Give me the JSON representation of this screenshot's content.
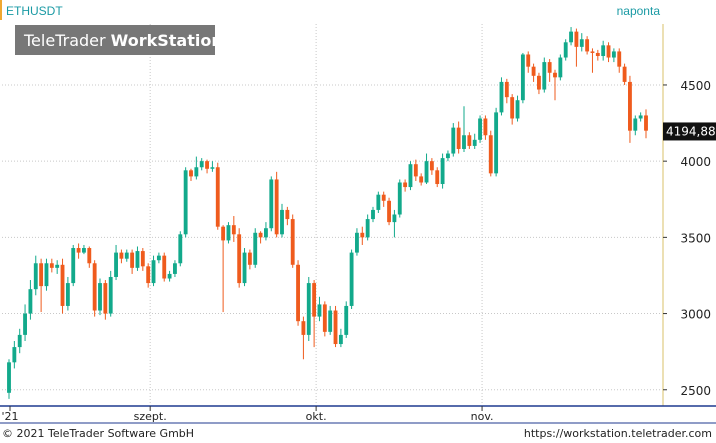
{
  "header": {
    "symbol": "ETHUSDT",
    "interval": "naponta",
    "watermark_light": "TeleTrader ",
    "watermark_bold": "WorkStation"
  },
  "footer": {
    "copyright": "© 2021  TeleTrader Software GmbH",
    "url": "https://workstation.teletrader.com"
  },
  "colors": {
    "up": "#12a98b",
    "down": "#ef5b1d",
    "symbol_text": "#1a9aa4",
    "grid": "#c8c8c8",
    "axis_border": "#1f3a8f",
    "last_label_bg": "#111111"
  },
  "chart_data": {
    "type": "candlestick",
    "symbol": "ETHUSDT",
    "interval": "naponta",
    "ylim": [
      2400,
      4900
    ],
    "y_ticks": [
      "2500",
      "3000",
      "3500",
      "4000",
      "4500"
    ],
    "x_ticks": [
      "'21",
      "szept.",
      "okt.",
      "nov."
    ],
    "last_value_label": "4194,88",
    "last_value": 4194.88,
    "candles": [
      [
        2480,
        2680,
        2440,
        2700
      ],
      [
        2680,
        2780,
        2640,
        2820
      ],
      [
        2780,
        2860,
        2740,
        2900
      ],
      [
        2860,
        3000,
        2820,
        3060
      ],
      [
        3000,
        3160,
        2960,
        3220
      ],
      [
        3160,
        3330,
        3120,
        3380
      ],
      [
        3330,
        3180,
        3010,
        3360
      ],
      [
        3180,
        3330,
        3150,
        3360
      ],
      [
        3330,
        3300,
        3270,
        3360
      ],
      [
        3300,
        3320,
        3260,
        3350
      ],
      [
        3320,
        3050,
        3000,
        3360
      ],
      [
        3050,
        3200,
        3020,
        3240
      ],
      [
        3200,
        3430,
        3180,
        3450
      ],
      [
        3430,
        3400,
        3360,
        3460
      ],
      [
        3400,
        3430,
        3390,
        3450
      ],
      [
        3430,
        3330,
        3300,
        3440
      ],
      [
        3330,
        3020,
        2980,
        3350
      ],
      [
        3020,
        3200,
        2990,
        3230
      ],
      [
        3200,
        3000,
        2960,
        3220
      ],
      [
        3000,
        3240,
        2980,
        3280
      ],
      [
        3240,
        3400,
        3220,
        3450
      ],
      [
        3400,
        3360,
        3330,
        3420
      ],
      [
        3360,
        3400,
        3340,
        3420
      ],
      [
        3400,
        3300,
        3260,
        3420
      ],
      [
        3300,
        3410,
        3280,
        3440
      ],
      [
        3410,
        3310,
        3280,
        3430
      ],
      [
        3310,
        3200,
        3170,
        3330
      ],
      [
        3200,
        3350,
        3180,
        3380
      ],
      [
        3350,
        3380,
        3330,
        3400
      ],
      [
        3380,
        3230,
        3210,
        3400
      ],
      [
        3230,
        3260,
        3210,
        3280
      ],
      [
        3260,
        3330,
        3240,
        3350
      ],
      [
        3330,
        3520,
        3310,
        3540
      ],
      [
        3520,
        3940,
        3500,
        3960
      ],
      [
        3940,
        3900,
        3870,
        3950
      ],
      [
        3900,
        3960,
        3880,
        4030
      ],
      [
        3960,
        4000,
        3940,
        4020
      ],
      [
        4000,
        3950,
        3920,
        4010
      ],
      [
        3950,
        3960,
        3930,
        4000
      ],
      [
        3960,
        3570,
        3550,
        3990
      ],
      [
        3570,
        3480,
        3010,
        3580
      ],
      [
        3480,
        3580,
        3460,
        3600
      ],
      [
        3580,
        3520,
        3470,
        3640
      ],
      [
        3520,
        3200,
        3170,
        3560
      ],
      [
        3200,
        3400,
        3180,
        3430
      ],
      [
        3400,
        3320,
        3290,
        3420
      ],
      [
        3320,
        3530,
        3300,
        3560
      ],
      [
        3530,
        3500,
        3460,
        3540
      ],
      [
        3500,
        3560,
        3480,
        3600
      ],
      [
        3560,
        3880,
        3540,
        3900
      ],
      [
        3880,
        3520,
        3500,
        3930
      ],
      [
        3520,
        3680,
        3500,
        3720
      ],
      [
        3680,
        3620,
        3580,
        3700
      ],
      [
        3620,
        3320,
        3300,
        3650
      ],
      [
        3320,
        2950,
        2920,
        3350
      ],
      [
        2950,
        2860,
        2700,
        2980
      ],
      [
        2860,
        3200,
        2820,
        3240
      ],
      [
        3200,
        2980,
        2780,
        3220
      ],
      [
        2980,
        3060,
        2950,
        3110
      ],
      [
        3060,
        2880,
        2850,
        3080
      ],
      [
        2880,
        3020,
        2860,
        3050
      ],
      [
        3020,
        2800,
        2780,
        3050
      ],
      [
        2800,
        2860,
        2780,
        2900
      ],
      [
        2860,
        3050,
        2840,
        3080
      ],
      [
        3050,
        3400,
        3030,
        3420
      ],
      [
        3400,
        3530,
        3380,
        3560
      ],
      [
        3530,
        3500,
        3450,
        3570
      ],
      [
        3500,
        3620,
        3480,
        3650
      ],
      [
        3620,
        3680,
        3600,
        3700
      ],
      [
        3680,
        3780,
        3660,
        3800
      ],
      [
        3780,
        3740,
        3700,
        3800
      ],
      [
        3740,
        3600,
        3580,
        3760
      ],
      [
        3600,
        3650,
        3500,
        3680
      ],
      [
        3650,
        3860,
        3630,
        3880
      ],
      [
        3860,
        3830,
        3800,
        3880
      ],
      [
        3830,
        3980,
        3810,
        4000
      ],
      [
        3980,
        3900,
        3870,
        4010
      ],
      [
        3900,
        3860,
        3840,
        3920
      ],
      [
        3860,
        4000,
        3850,
        4050
      ],
      [
        4000,
        3940,
        3910,
        4020
      ],
      [
        3940,
        3850,
        3830,
        3960
      ],
      [
        3850,
        4020,
        3820,
        4050
      ],
      [
        4020,
        4050,
        4000,
        4070
      ],
      [
        4050,
        4220,
        4030,
        4250
      ],
      [
        4220,
        4080,
        4050,
        4260
      ],
      [
        4080,
        4170,
        4060,
        4360
      ],
      [
        4170,
        4100,
        4080,
        4190
      ],
      [
        4100,
        4140,
        4080,
        4180
      ],
      [
        4140,
        4280,
        4120,
        4300
      ],
      [
        4280,
        4170,
        4140,
        4300
      ],
      [
        4170,
        3920,
        3900,
        4200
      ],
      [
        3920,
        4320,
        3900,
        4350
      ],
      [
        4320,
        4520,
        4300,
        4550
      ],
      [
        4520,
        4420,
        4380,
        4540
      ],
      [
        4420,
        4280,
        4240,
        4440
      ],
      [
        4280,
        4400,
        4260,
        4430
      ],
      [
        4400,
        4700,
        4380,
        4710
      ],
      [
        4700,
        4620,
        4580,
        4720
      ],
      [
        4620,
        4560,
        4520,
        4640
      ],
      [
        4560,
        4470,
        4440,
        4580
      ],
      [
        4470,
        4650,
        4450,
        4680
      ],
      [
        4650,
        4580,
        4520,
        4670
      ],
      [
        4580,
        4550,
        4400,
        4600
      ],
      [
        4550,
        4680,
        4530,
        4700
      ],
      [
        4680,
        4780,
        4660,
        4800
      ],
      [
        4780,
        4850,
        4760,
        4880
      ],
      [
        4850,
        4750,
        4620,
        4870
      ],
      [
        4750,
        4800,
        4720,
        4840
      ],
      [
        4800,
        4720,
        4700,
        4820
      ],
      [
        4720,
        4710,
        4580,
        4740
      ],
      [
        4710,
        4690,
        4660,
        4730
      ],
      [
        4690,
        4760,
        4660,
        4790
      ],
      [
        4760,
        4680,
        4650,
        4780
      ],
      [
        4680,
        4720,
        4650,
        4740
      ],
      [
        4720,
        4620,
        4580,
        4740
      ],
      [
        4620,
        4520,
        4500,
        4640
      ],
      [
        4520,
        4200,
        4120,
        4560
      ],
      [
        4200,
        4280,
        4170,
        4300
      ],
      [
        4280,
        4300,
        4260,
        4320
      ],
      [
        4300,
        4200,
        4150,
        4340
      ]
    ]
  }
}
